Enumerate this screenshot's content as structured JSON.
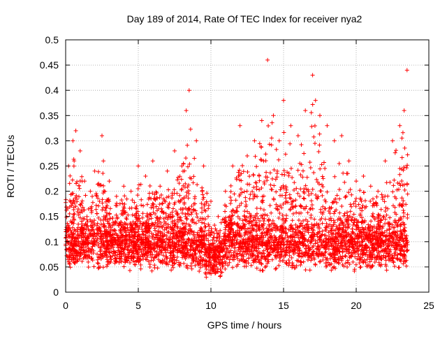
{
  "chart_data": {
    "type": "scatter",
    "title": "Day 189 of 2014, Rate Of TEC Index for receiver nya2",
    "xlabel": "GPS time / hours",
    "ylabel": "ROTI / TECUs",
    "xlim": [
      0,
      25
    ],
    "ylim": [
      0,
      0.5
    ],
    "xticks": [
      0,
      5,
      10,
      15,
      20,
      25
    ],
    "yticks": [
      0,
      0.05,
      0.1,
      0.15,
      0.2,
      0.25,
      0.3,
      0.35,
      0.4,
      0.45,
      0.5
    ],
    "grid": true,
    "marker": "+",
    "point_color": "#ff0000",
    "series": [
      {
        "name": "ROTI",
        "x": [
          0.2,
          0.5,
          0.7,
          1.0,
          1.3,
          1.7,
          2.0,
          2.5,
          2.6,
          3.0,
          3.5,
          4.0,
          4.5,
          5.0,
          5.5,
          6.0,
          6.5,
          7.0,
          7.5,
          8.0,
          8.3,
          8.5,
          9.0,
          9.5,
          10.0,
          10.5,
          11.0,
          11.5,
          12.0,
          12.5,
          13.0,
          13.5,
          13.9,
          14.3,
          14.7,
          15.0,
          15.5,
          16.0,
          16.5,
          17.0,
          17.2,
          17.5,
          18.0,
          18.5,
          19.0,
          19.5,
          20.0,
          20.5,
          21.0,
          21.5,
          22.0,
          22.5,
          23.0,
          23.3,
          23.5
        ],
        "y": [
          0.25,
          0.3,
          0.32,
          0.28,
          0.22,
          0.2,
          0.24,
          0.31,
          0.26,
          0.22,
          0.19,
          0.21,
          0.2,
          0.25,
          0.23,
          0.26,
          0.21,
          0.24,
          0.28,
          0.25,
          0.36,
          0.4,
          0.3,
          0.25,
          0.18,
          0.15,
          0.2,
          0.25,
          0.33,
          0.27,
          0.3,
          0.34,
          0.46,
          0.35,
          0.3,
          0.38,
          0.33,
          0.31,
          0.36,
          0.43,
          0.38,
          0.35,
          0.33,
          0.3,
          0.31,
          0.26,
          0.22,
          0.23,
          0.21,
          0.2,
          0.26,
          0.3,
          0.33,
          0.36,
          0.44
        ]
      }
    ]
  }
}
